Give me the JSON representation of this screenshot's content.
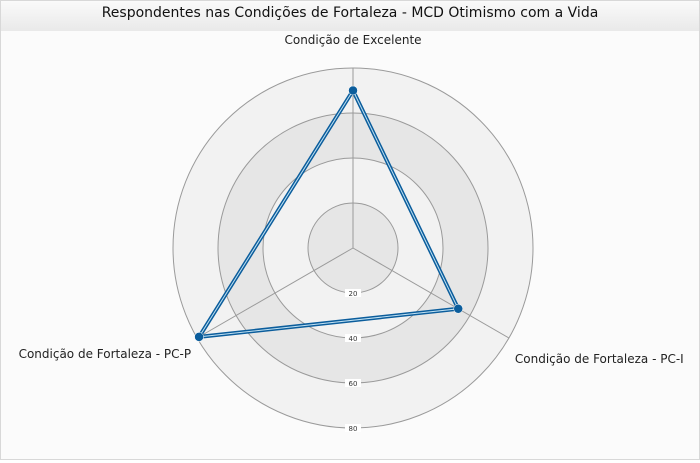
{
  "chart_data": {
    "type": "radar",
    "title": "Respondentes nas Condições de Fortaleza - MCD Otimismo com a Vida",
    "categories": [
      "Condição de Excelente",
      "Condição de Fortaleza - PC-I",
      "Condição de Fortaleza - PC-P"
    ],
    "radial_ticks": [
      "20",
      "40",
      "60",
      "80"
    ],
    "rmax": 80,
    "series": [
      {
        "values": [
          70,
          54,
          79
        ],
        "color": "#0b5d9c"
      }
    ],
    "ring_colors": [
      "#f2f2f2",
      "#e6e6e6"
    ],
    "grid_color": "#9a9a9a"
  }
}
